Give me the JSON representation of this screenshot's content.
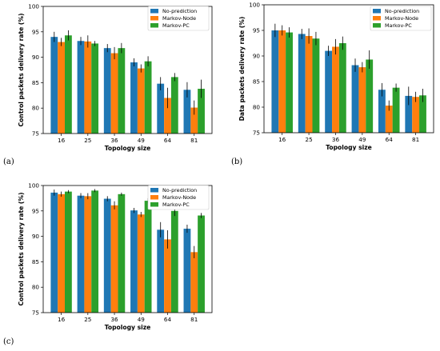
{
  "colors": {
    "no_prediction": "#1f77b4",
    "markov_node": "#ff7f0e",
    "markov_pc": "#2ca02c",
    "error_bar": "#000000"
  },
  "chart_data": [
    {
      "type": "bar",
      "panel_label": "(a)",
      "categories": [
        "16",
        "25",
        "36",
        "49",
        "64",
        "81"
      ],
      "xlabel": "Topology size",
      "ylabel": "Control packets delivery rate (%)",
      "ylim": [
        75,
        100
      ],
      "yticks": [
        "75",
        "80",
        "85",
        "90",
        "95",
        "100"
      ],
      "legend_position": "top-right",
      "grid": false,
      "series": [
        {
          "name": "No-prediction",
          "values": [
            94.0,
            93.2,
            91.8,
            89.0,
            84.8,
            83.6
          ],
          "errors": [
            1.0,
            0.8,
            0.8,
            0.8,
            1.3,
            1.5
          ]
        },
        {
          "name": "Markov-Node",
          "values": [
            93.0,
            93.1,
            90.8,
            87.8,
            82.0,
            80.1
          ],
          "errors": [
            0.8,
            1.2,
            1.2,
            0.8,
            2.0,
            1.4
          ]
        },
        {
          "name": "Markov-PC",
          "values": [
            94.3,
            92.7,
            91.8,
            89.2,
            86.1,
            83.8
          ],
          "errors": [
            1.0,
            0.5,
            1.0,
            1.0,
            0.8,
            1.8
          ]
        }
      ]
    },
    {
      "type": "bar",
      "panel_label": "(b)",
      "categories": [
        "16",
        "25",
        "36",
        "49",
        "64",
        "81"
      ],
      "xlabel": "Topology size",
      "ylabel": "Data packets delivery rate (%)",
      "ylim": [
        75,
        100
      ],
      "yticks": [
        "75",
        "80",
        "85",
        "90",
        "95",
        "100"
      ],
      "legend_position": "top-right",
      "grid": false,
      "series": [
        {
          "name": "No-prediction",
          "values": [
            95.0,
            94.3,
            91.0,
            88.2,
            83.4,
            82.2
          ],
          "errors": [
            1.3,
            1.0,
            1.0,
            1.3,
            1.3,
            1.8
          ]
        },
        {
          "name": "Markov-Node",
          "values": [
            95.0,
            93.9,
            91.8,
            87.8,
            80.3,
            82.0
          ],
          "errors": [
            1.0,
            1.5,
            1.5,
            1.0,
            1.0,
            1.0
          ]
        },
        {
          "name": "Markov-PC",
          "values": [
            94.6,
            93.4,
            92.5,
            89.3,
            83.8,
            82.3
          ],
          "errors": [
            1.0,
            1.3,
            1.3,
            1.8,
            0.8,
            1.3
          ]
        }
      ]
    },
    {
      "type": "bar",
      "panel_label": "(c)",
      "categories": [
        "16",
        "25",
        "36",
        "49",
        "64",
        "81"
      ],
      "xlabel": "Topology size",
      "ylabel": "Control packets delivery rate (%)",
      "ylim": [
        75,
        100
      ],
      "yticks": [
        "75",
        "80",
        "85",
        "90",
        "95",
        "100"
      ],
      "legend_position": "top-right",
      "grid": false,
      "series": [
        {
          "name": "No-prediction",
          "values": [
            98.6,
            98.0,
            97.4,
            95.1,
            91.3,
            91.5
          ],
          "errors": [
            0.6,
            0.5,
            0.5,
            0.5,
            1.5,
            0.8
          ]
        },
        {
          "name": "Markov-Node",
          "values": [
            98.3,
            97.9,
            96.1,
            94.3,
            89.4,
            86.9
          ],
          "errors": [
            0.5,
            0.6,
            0.8,
            0.5,
            1.8,
            1.2
          ]
        },
        {
          "name": "Markov-PC",
          "values": [
            98.8,
            99.0,
            98.3,
            97.0,
            95.0,
            94.1
          ],
          "errors": [
            0.3,
            0.3,
            0.3,
            0.5,
            1.0,
            0.5
          ]
        }
      ]
    }
  ]
}
